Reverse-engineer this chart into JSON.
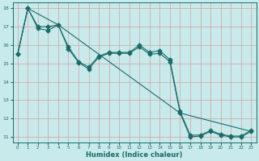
{
  "xlabel": "Humidex (Indice chaleur)",
  "bg_color": "#c8eaea",
  "grid_color": "#d4a0a0",
  "line_color": "#1a6b6b",
  "xlim": [
    -0.5,
    23.5
  ],
  "ylim": [
    10.7,
    18.3
  ],
  "xticks": [
    0,
    1,
    2,
    3,
    4,
    5,
    6,
    7,
    8,
    9,
    10,
    11,
    12,
    13,
    14,
    15,
    16,
    17,
    18,
    19,
    20,
    21,
    22,
    23
  ],
  "yticks": [
    11,
    12,
    13,
    14,
    15,
    16,
    17,
    18
  ],
  "line1_x": [
    0,
    1,
    2,
    3,
    4,
    5,
    6,
    7,
    8,
    9,
    10,
    11,
    12,
    13,
    14,
    15,
    16,
    17,
    18,
    19,
    20,
    21,
    22,
    23
  ],
  "line1_y": [
    15.5,
    18.0,
    16.9,
    16.8,
    17.1,
    15.8,
    15.05,
    14.7,
    15.35,
    15.55,
    15.55,
    15.55,
    15.9,
    15.5,
    15.55,
    15.1,
    12.3,
    11.0,
    11.05,
    11.3,
    11.1,
    11.0,
    11.0,
    11.3
  ],
  "line2_x": [
    0,
    1,
    2,
    3,
    4,
    5,
    6,
    7,
    8,
    9,
    10,
    11,
    12,
    13,
    14,
    15,
    16,
    17,
    18,
    19,
    20,
    21,
    22,
    23
  ],
  "line2_y": [
    15.5,
    18.0,
    17.0,
    17.0,
    17.1,
    15.9,
    15.1,
    14.8,
    15.4,
    15.6,
    15.6,
    15.6,
    16.0,
    15.6,
    15.7,
    15.2,
    12.4,
    11.1,
    11.1,
    11.35,
    11.15,
    11.05,
    11.05,
    11.35
  ],
  "line3_x": [
    0,
    1,
    4,
    16,
    23
  ],
  "line3_y": [
    15.5,
    18.0,
    17.1,
    12.3,
    11.3
  ]
}
